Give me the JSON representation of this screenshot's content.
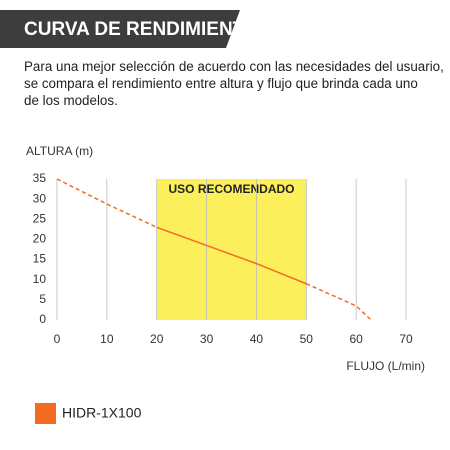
{
  "header": {
    "title": "CURVA DE RENDIMIENTO"
  },
  "description": [
    "Para una mejor selección de acuerdo con las necesidades del usuario,",
    "se compara el rendimiento entre altura y flujo que brinda cada uno",
    "de los modelos."
  ],
  "chart_data": {
    "type": "line",
    "ylabel": "ALTURA (m)",
    "xlabel": "FLUJO (L/min)",
    "xlim": [
      0,
      70
    ],
    "xticks": [
      0,
      10,
      20,
      30,
      40,
      50,
      60,
      70
    ],
    "ylim": [
      0,
      35
    ],
    "yticks": [
      0,
      5,
      10,
      15,
      20,
      25,
      30,
      35
    ],
    "grid": true,
    "region": {
      "label": "USO RECOMENDADO",
      "xrange": [
        20,
        50
      ],
      "color": "#fcef5c"
    },
    "x": [
      0,
      10,
      20,
      30,
      40,
      50,
      60,
      63
    ],
    "series": [
      {
        "name": "HIDR-1X100",
        "color": "#f26b21",
        "values": [
          35,
          28.8,
          23,
          18.5,
          14,
          9,
          3.5,
          0
        ]
      }
    ]
  }
}
